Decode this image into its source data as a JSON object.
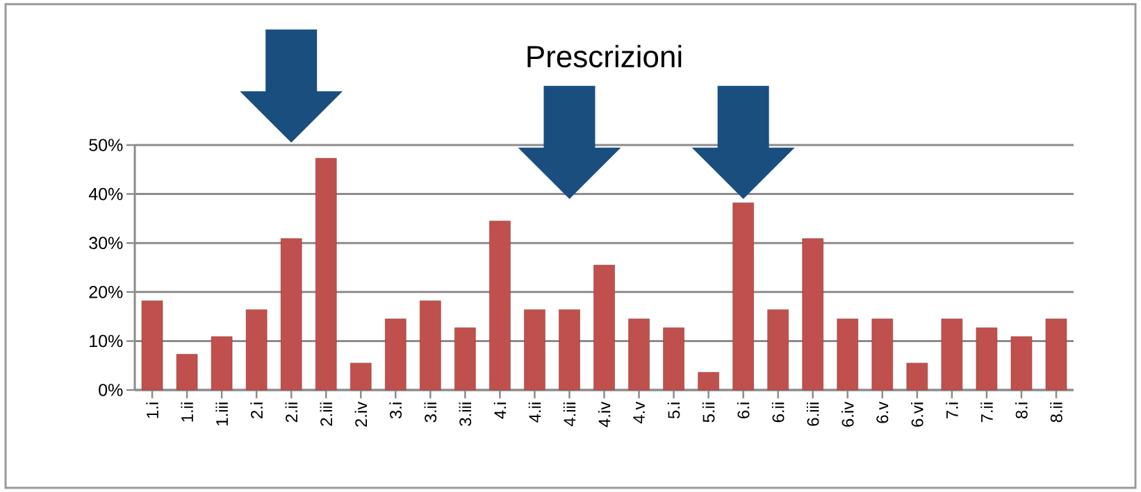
{
  "chart_data": {
    "type": "bar",
    "title": "Prescrizioni",
    "categories": [
      "1.i",
      "1.ii",
      "1.iii",
      "2.i",
      "2.ii",
      "2.iii",
      "2.iv",
      "3.i",
      "3.ii",
      "3.iii",
      "4.i",
      "4.ii",
      "4.iii",
      "4.iv",
      "4.v",
      "5.i",
      "5.ii",
      "6.i",
      "6.ii",
      "6.iii",
      "6.iv",
      "6.v",
      "6.vi",
      "7.i",
      "7.ii",
      "8.i",
      "8.ii"
    ],
    "values": [
      18.2,
      7.3,
      10.9,
      16.4,
      30.9,
      47.3,
      5.5,
      14.5,
      18.2,
      12.7,
      34.5,
      16.4,
      16.4,
      25.5,
      14.5,
      12.7,
      3.6,
      38.2,
      16.4,
      30.9,
      14.5,
      14.5,
      5.5,
      14.5,
      12.7,
      10.9,
      14.5
    ],
    "color": "#c0504d",
    "ylim": [
      0,
      50
    ],
    "yticks": [
      {
        "value": 0,
        "label": "0%"
      },
      {
        "value": 10,
        "label": "10%"
      },
      {
        "value": 20,
        "label": "20%"
      },
      {
        "value": 30,
        "label": "30%"
      },
      {
        "value": 40,
        "label": "40%"
      },
      {
        "value": 50,
        "label": "50%"
      }
    ],
    "grid": "y"
  }
}
